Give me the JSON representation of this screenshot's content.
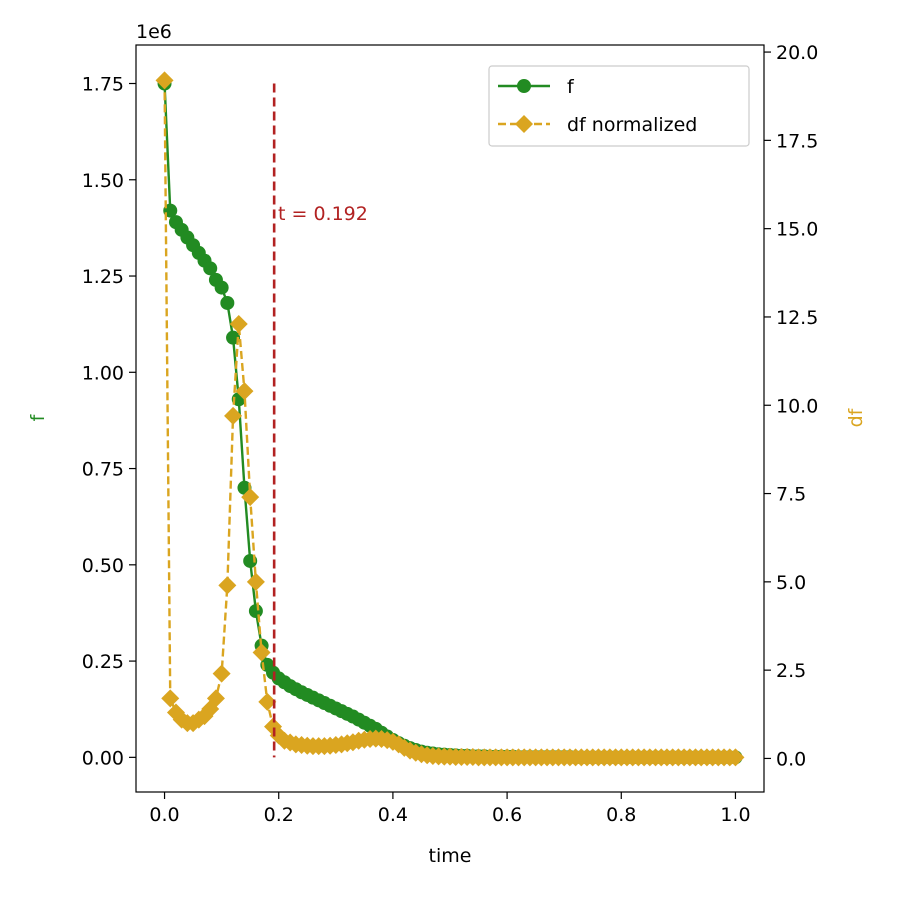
{
  "chart_data": {
    "type": "line",
    "xlabel": "time",
    "ylabel_left": "f",
    "ylabel_right": "df",
    "offset_text": "1e6",
    "xlim": [
      -0.05,
      1.05
    ],
    "ylim_left": [
      -0.09,
      1.85
    ],
    "ylim_right": [
      -0.95,
      20.2
    ],
    "x_ticks": [
      0.0,
      0.2,
      0.4,
      0.6,
      0.8,
      1.0
    ],
    "x_tick_labels": [
      "0.0",
      "0.2",
      "0.4",
      "0.6",
      "0.8",
      "1.0"
    ],
    "y_left_ticks": [
      0.0,
      0.25,
      0.5,
      0.75,
      1.0,
      1.25,
      1.5,
      1.75
    ],
    "y_left_tick_labels": [
      "0.00",
      "0.25",
      "0.50",
      "0.75",
      "1.00",
      "1.25",
      "1.50",
      "1.75"
    ],
    "y_right_ticks": [
      0.0,
      2.5,
      5.0,
      7.5,
      10.0,
      12.5,
      15.0,
      17.5,
      20.0
    ],
    "y_right_tick_labels": [
      "0.0",
      "2.5",
      "5.0",
      "7.5",
      "10.0",
      "12.5",
      "15.0",
      "17.5",
      "20.0"
    ],
    "vline": {
      "x": 0.192,
      "y_range": [
        0.0,
        1.75
      ],
      "label": "t = 0.192",
      "color": "#b22222"
    },
    "legend": {
      "position": "top-right",
      "entries": [
        "f",
        "df normalized"
      ]
    },
    "series": [
      {
        "name": "f",
        "axis": "left",
        "color": "#228b22",
        "marker": "circle",
        "linestyle": "solid",
        "x": [
          0.0,
          0.01,
          0.02,
          0.03,
          0.04,
          0.05,
          0.06,
          0.07,
          0.08,
          0.09,
          0.1,
          0.11,
          0.12,
          0.13,
          0.14,
          0.15,
          0.16,
          0.17,
          0.18,
          0.19,
          0.2,
          0.21,
          0.22,
          0.23,
          0.24,
          0.25,
          0.26,
          0.27,
          0.28,
          0.29,
          0.3,
          0.31,
          0.32,
          0.33,
          0.34,
          0.35,
          0.36,
          0.37,
          0.38,
          0.39,
          0.4,
          0.41,
          0.42,
          0.43,
          0.44,
          0.45,
          0.46,
          0.47,
          0.48,
          0.49,
          0.5,
          0.51,
          0.52,
          0.53,
          0.54,
          0.55,
          0.56,
          0.57,
          0.58,
          0.59,
          0.6,
          0.61,
          0.62,
          0.63,
          0.64,
          0.65,
          0.66,
          0.67,
          0.68,
          0.69,
          0.7,
          0.71,
          0.72,
          0.73,
          0.74,
          0.75,
          0.76,
          0.77,
          0.78,
          0.79,
          0.8,
          0.81,
          0.82,
          0.83,
          0.84,
          0.85,
          0.86,
          0.87,
          0.88,
          0.89,
          0.9,
          0.91,
          0.92,
          0.93,
          0.94,
          0.95,
          0.96,
          0.97,
          0.98,
          0.99,
          1.0
        ],
        "values": [
          1.75,
          1.42,
          1.39,
          1.37,
          1.35,
          1.33,
          1.31,
          1.29,
          1.27,
          1.24,
          1.22,
          1.18,
          1.09,
          0.93,
          0.7,
          0.51,
          0.38,
          0.29,
          0.24,
          0.22,
          0.205,
          0.195,
          0.185,
          0.177,
          0.169,
          0.162,
          0.155,
          0.148,
          0.141,
          0.134,
          0.127,
          0.12,
          0.113,
          0.106,
          0.098,
          0.09,
          0.082,
          0.074,
          0.064,
          0.054,
          0.045,
          0.037,
          0.03,
          0.024,
          0.019,
          0.015,
          0.012,
          0.01,
          0.008,
          0.007,
          0.006,
          0.005,
          0.004,
          0.004,
          0.003,
          0.003,
          0.003,
          0.002,
          0.002,
          0.002,
          0.002,
          0.002,
          0.001,
          0.001,
          0.001,
          0.001,
          0.001,
          0.001,
          0.001,
          0.001,
          0.001,
          0.001,
          0.0,
          0.0,
          0.0,
          0.0,
          0.0,
          0.0,
          0.0,
          0.0,
          0.0,
          0.0,
          0.0,
          0.0,
          0.0,
          0.0,
          0.0,
          0.0,
          0.0,
          0.0,
          0.0,
          0.0,
          0.0,
          0.0,
          0.0,
          0.0,
          0.0,
          0.0,
          0.0,
          0.0,
          0.0
        ]
      },
      {
        "name": "df normalized",
        "axis": "right",
        "color": "#daa520",
        "marker": "diamond",
        "linestyle": "dashed",
        "x": [
          0.0,
          0.01,
          0.02,
          0.03,
          0.04,
          0.05,
          0.06,
          0.07,
          0.08,
          0.09,
          0.1,
          0.11,
          0.12,
          0.13,
          0.14,
          0.15,
          0.16,
          0.17,
          0.18,
          0.19,
          0.2,
          0.21,
          0.22,
          0.23,
          0.24,
          0.25,
          0.26,
          0.27,
          0.28,
          0.29,
          0.3,
          0.31,
          0.32,
          0.33,
          0.34,
          0.35,
          0.36,
          0.37,
          0.38,
          0.39,
          0.4,
          0.41,
          0.42,
          0.43,
          0.44,
          0.45,
          0.46,
          0.47,
          0.48,
          0.49,
          0.5,
          0.51,
          0.52,
          0.53,
          0.54,
          0.55,
          0.56,
          0.57,
          0.58,
          0.59,
          0.6,
          0.61,
          0.62,
          0.63,
          0.64,
          0.65,
          0.66,
          0.67,
          0.68,
          0.69,
          0.7,
          0.71,
          0.72,
          0.73,
          0.74,
          0.75,
          0.76,
          0.77,
          0.78,
          0.79,
          0.8,
          0.81,
          0.82,
          0.83,
          0.84,
          0.85,
          0.86,
          0.87,
          0.88,
          0.89,
          0.9,
          0.91,
          0.92,
          0.93,
          0.94,
          0.95,
          0.96,
          0.97,
          0.98,
          0.99,
          1.0
        ],
        "values": [
          19.2,
          1.7,
          1.3,
          1.1,
          1.0,
          1.0,
          1.1,
          1.2,
          1.4,
          1.7,
          2.4,
          4.9,
          9.7,
          12.3,
          10.4,
          7.4,
          5.0,
          3.0,
          1.6,
          0.9,
          0.65,
          0.5,
          0.45,
          0.4,
          0.38,
          0.36,
          0.35,
          0.35,
          0.35,
          0.36,
          0.38,
          0.4,
          0.43,
          0.46,
          0.5,
          0.53,
          0.55,
          0.56,
          0.55,
          0.52,
          0.47,
          0.4,
          0.3,
          0.22,
          0.16,
          0.12,
          0.09,
          0.07,
          0.06,
          0.05,
          0.05,
          0.04,
          0.04,
          0.04,
          0.04,
          0.03,
          0.03,
          0.03,
          0.03,
          0.03,
          0.03,
          0.03,
          0.03,
          0.03,
          0.03,
          0.03,
          0.03,
          0.03,
          0.03,
          0.03,
          0.03,
          0.03,
          0.03,
          0.03,
          0.03,
          0.03,
          0.03,
          0.03,
          0.03,
          0.03,
          0.03,
          0.03,
          0.03,
          0.03,
          0.03,
          0.03,
          0.03,
          0.03,
          0.03,
          0.03,
          0.03,
          0.03,
          0.03,
          0.03,
          0.03,
          0.03,
          0.03,
          0.03,
          0.03,
          0.03,
          0.03
        ]
      }
    ]
  }
}
